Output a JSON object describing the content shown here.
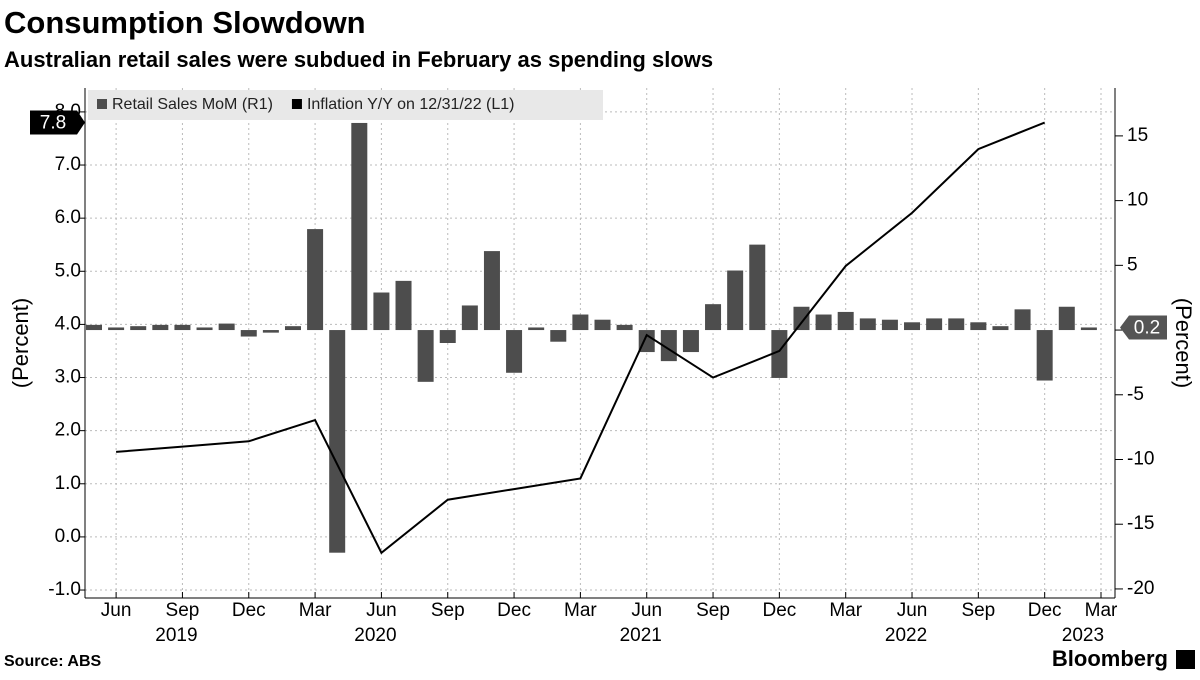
{
  "chart_data": {
    "type": "bar-line",
    "title": "Consumption Slowdown",
    "subtitle": "Australian retail sales were subdued in February as spending slows",
    "source": "Source: ABS",
    "brand": "Bloomberg",
    "ylabel": "(Percent)",
    "y2label": "(Percent)",
    "xlim": [
      "2019-05",
      "2023-03"
    ],
    "ylim": [
      -1.15,
      8.45
    ],
    "yticks": [
      {
        "value": -1,
        "label": "-1.0"
      },
      {
        "value": 0,
        "label": "0.0"
      },
      {
        "value": 1,
        "label": "1.0"
      },
      {
        "value": 2,
        "label": "2.0"
      },
      {
        "value": 3,
        "label": "3.0"
      },
      {
        "value": 4,
        "label": "4.0"
      },
      {
        "value": 5,
        "label": "5.0"
      },
      {
        "value": 6,
        "label": "6.0"
      },
      {
        "value": 7,
        "label": "7.0"
      },
      {
        "value": 8,
        "label": "8.0"
      }
    ],
    "y2lim": [
      -20.7,
      18.7
    ],
    "y2ticks": [
      -20,
      -15,
      -10,
      -5,
      0,
      5,
      10,
      15
    ],
    "xticks": [
      {
        "value": "2019-06",
        "label": "Jun"
      },
      {
        "value": "2019-09",
        "label": "Sep"
      },
      {
        "value": "2019-12",
        "label": "Dec"
      },
      {
        "value": "2020-03",
        "label": "Mar"
      },
      {
        "value": "2020-06",
        "label": "Jun"
      },
      {
        "value": "2020-09",
        "label": "Sep"
      },
      {
        "value": "2020-12",
        "label": "Dec"
      },
      {
        "value": "2021-03",
        "label": "Mar"
      },
      {
        "value": "2021-06",
        "label": "Jun"
      },
      {
        "value": "2021-09",
        "label": "Sep"
      },
      {
        "value": "2021-12",
        "label": "Dec"
      },
      {
        "value": "2022-03",
        "label": "Mar"
      },
      {
        "value": "2022-06",
        "label": "Jun"
      },
      {
        "value": "2022-09",
        "label": "Sep"
      },
      {
        "value": "2022-12",
        "label": "Dec"
      },
      {
        "value": "2023-03",
        "label": "Mar"
      }
    ],
    "year_labels": [
      {
        "value": "2019-09",
        "label": "2019"
      },
      {
        "value": "2020-06",
        "label": "2020"
      },
      {
        "value": "2021-06",
        "label": "2021"
      },
      {
        "value": "2022-06",
        "label": "2022"
      },
      {
        "value": "2023-02",
        "label": "2023"
      }
    ],
    "grid": true,
    "legend": "top-left",
    "series": [
      {
        "name": "Retail Sales MoM (R1)",
        "kind": "bar",
        "axis": "y2",
        "color": "#4d4d4d",
        "x": [
          "2019-05",
          "2019-06",
          "2019-07",
          "2019-08",
          "2019-09",
          "2019-10",
          "2019-11",
          "2019-12",
          "2020-01",
          "2020-02",
          "2020-03",
          "2020-04",
          "2020-05",
          "2020-06",
          "2020-07",
          "2020-08",
          "2020-09",
          "2020-10",
          "2020-11",
          "2020-12",
          "2021-01",
          "2021-02",
          "2021-03",
          "2021-04",
          "2021-05",
          "2021-06",
          "2021-07",
          "2021-08",
          "2021-09",
          "2021-10",
          "2021-11",
          "2021-12",
          "2022-01",
          "2022-02",
          "2022-03",
          "2022-04",
          "2022-05",
          "2022-06",
          "2022-07",
          "2022-08",
          "2022-09",
          "2022-10",
          "2022-11",
          "2022-12",
          "2023-01",
          "2023-02"
        ],
        "values": [
          0.4,
          0.2,
          0.3,
          0.4,
          0.4,
          0.2,
          0.5,
          -0.5,
          -0.2,
          0.3,
          7.8,
          -17.2,
          16.0,
          2.9,
          3.8,
          -4.0,
          -1.0,
          1.9,
          6.1,
          -3.3,
          0.2,
          -0.9,
          1.2,
          0.8,
          0.4,
          -1.7,
          -2.4,
          -1.7,
          2.0,
          4.6,
          6.6,
          -3.7,
          1.8,
          1.2,
          1.4,
          0.9,
          0.8,
          0.6,
          0.9,
          0.9,
          0.6,
          0.3,
          1.6,
          -3.9,
          1.8,
          0.2
        ]
      },
      {
        "name": "Inflation Y/Y on 12/31/22 (L1)",
        "kind": "line",
        "axis": "y",
        "color": "#000000",
        "x": [
          "2019-06",
          "2019-09",
          "2019-12",
          "2020-03",
          "2020-06",
          "2020-09",
          "2020-12",
          "2021-03",
          "2021-06",
          "2021-09",
          "2021-12",
          "2022-03",
          "2022-06",
          "2022-09",
          "2022-12"
        ],
        "values": [
          1.6,
          1.7,
          1.8,
          2.2,
          -0.3,
          0.7,
          0.9,
          1.1,
          3.8,
          3.0,
          3.5,
          5.1,
          6.1,
          7.3,
          7.8
        ]
      }
    ]
  }
}
